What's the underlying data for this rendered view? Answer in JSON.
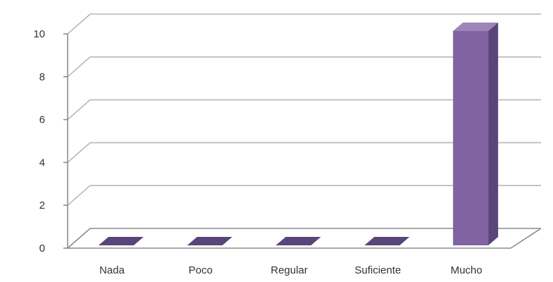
{
  "chart_data": {
    "type": "bar",
    "categories": [
      "Nada",
      "Poco",
      "Regular",
      "Suficiente",
      "Mucho"
    ],
    "values": [
      0,
      0,
      0,
      0,
      10
    ],
    "yticks": [
      "0",
      "2",
      "4",
      "6",
      "8",
      "10"
    ],
    "ylim": [
      0,
      10
    ],
    "grid": true,
    "legend": "none",
    "style": "3d-column",
    "colors": {
      "bar_front": "#8064a2",
      "bar_side": "#5a4578",
      "bar_top": "#9c85b8",
      "gridline": "#b7b7b7",
      "axis": "#8c8c8c",
      "text": "#333333"
    }
  }
}
